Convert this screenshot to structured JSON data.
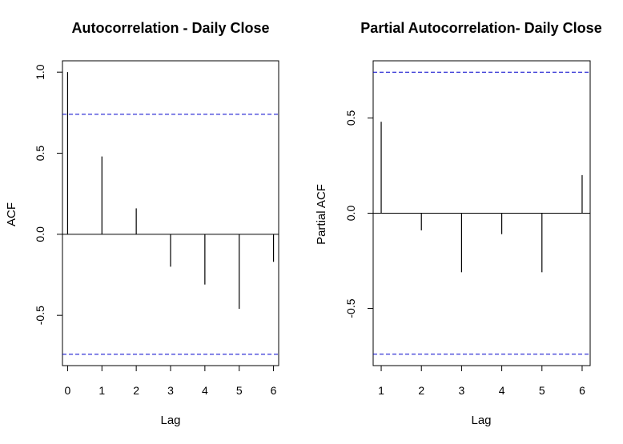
{
  "chart_data": [
    {
      "type": "bar",
      "title": "Autocorrelation - Daily Close",
      "xlabel": "Lag",
      "ylabel": "ACF",
      "x": [
        0,
        1,
        2,
        3,
        4,
        5,
        6
      ],
      "values": [
        1.0,
        0.48,
        0.16,
        -0.2,
        -0.31,
        -0.46,
        -0.17
      ],
      "confidence_bounds": [
        0.74,
        -0.74
      ],
      "xlim": [
        -0.15,
        6.15
      ],
      "ylim": [
        -0.81,
        1.07
      ],
      "x_ticks": [
        0,
        1,
        2,
        3,
        4,
        5,
        6
      ],
      "y_ticks": [
        -0.5,
        0.0,
        0.5,
        1.0
      ],
      "x_tick_labels": [
        "0",
        "1",
        "2",
        "3",
        "4",
        "5",
        "6"
      ],
      "y_tick_labels": [
        "-0.5",
        "0.0",
        "0.5",
        "1.0"
      ],
      "grid": false,
      "bound_color": "#0000cc"
    },
    {
      "type": "bar",
      "title": "Partial Autocorrelation- Daily Close",
      "xlabel": "Lag",
      "ylabel": "Partial ACF",
      "x": [
        1,
        2,
        3,
        4,
        5,
        6
      ],
      "values": [
        0.48,
        -0.09,
        -0.31,
        -0.11,
        -0.31,
        0.2
      ],
      "confidence_bounds": [
        0.74,
        -0.74
      ],
      "xlim": [
        0.8,
        6.2
      ],
      "ylim": [
        -0.8,
        0.8
      ],
      "x_ticks": [
        1,
        2,
        3,
        4,
        5,
        6
      ],
      "y_ticks": [
        -0.5,
        0.0,
        0.5
      ],
      "x_tick_labels": [
        "1",
        "2",
        "3",
        "4",
        "5",
        "6"
      ],
      "y_tick_labels": [
        "-0.5",
        "0.0",
        "0.5"
      ],
      "grid": false,
      "bound_color": "#0000cc"
    }
  ]
}
